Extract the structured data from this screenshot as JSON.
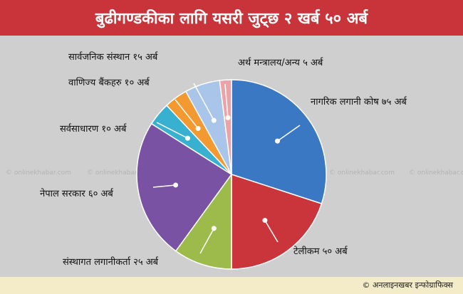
{
  "title": "बुढीगण्डकीका लागि यसरी जुट्छ २ खर्ब ५० अर्ब",
  "footer": {
    "credit": "© अनलाइनखबर इन्फोग्राफिक्स"
  },
  "watermark": {
    "text": "onlinekhabar",
    "suffix": ".com"
  },
  "colors": {
    "header_bg": "#c9333a",
    "footer_bg": "#f4ecc8",
    "page_bg": "#cfcfcf"
  },
  "chart_data": {
    "type": "pie",
    "unit": "अर्ब",
    "total": 250,
    "start": "12 o'clock, clockwise",
    "slices": [
      {
        "label": "नागरिक लगानी कोष ७५ अर्ब",
        "value": 75,
        "color": "#3b78c4"
      },
      {
        "label": "टेलीकम ५० अर्ब",
        "value": 50,
        "color": "#c9353a"
      },
      {
        "label": "संस्थागत लगानीकर्ता २५ अर्ब",
        "value": 25,
        "color": "#9cbb4a"
      },
      {
        "label": "नेपाल सरकार ६० अर्ब",
        "value": 60,
        "color": "#7a52a4"
      },
      {
        "label": "सर्वसाधारण १० अर्ब",
        "value": 10,
        "color": "#38b0cf"
      },
      {
        "label": "वाणिज्य बैंकहरु १० अर्ब",
        "value": 10,
        "color": "#f39932"
      },
      {
        "label": "सार्वजनिक संस्थान १५ अर्ब",
        "value": 15,
        "color": "#a9c6ea"
      },
      {
        "label": "अर्थ मन्त्रालय/अन्य ५ अर्ब",
        "value": 5,
        "color": "#eda2a7"
      }
    ]
  }
}
